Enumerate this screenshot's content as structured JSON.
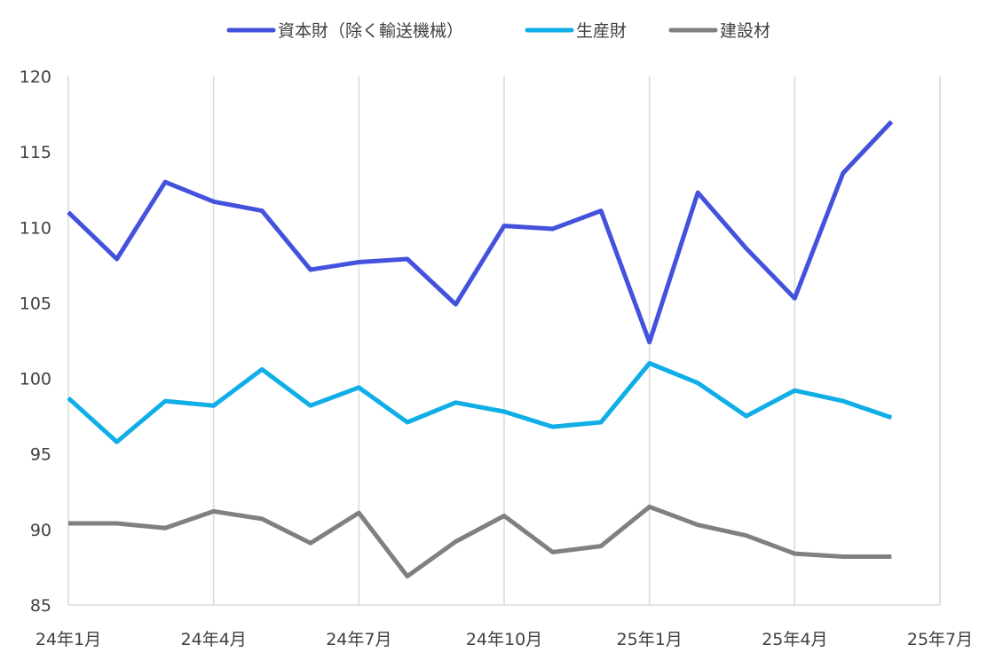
{
  "chart_data": {
    "type": "line",
    "title": "",
    "xlabel": "",
    "ylabel": "",
    "ylim": [
      85,
      120
    ],
    "yticks": [
      85,
      90,
      95,
      100,
      105,
      110,
      115,
      120
    ],
    "x_tick_labels": [
      "24年1月",
      "24年4月",
      "24年7月",
      "24年10月",
      "25年1月",
      "25年4月",
      "25年7月"
    ],
    "x_range_months": [
      0,
      18
    ],
    "grid": "vertical",
    "legend_position": "top",
    "x": [
      "24年1月",
      "24年2月",
      "24年3月",
      "24年4月",
      "24年5月",
      "24年6月",
      "24年7月",
      "24年8月",
      "24年9月",
      "24年10月",
      "24年11月",
      "24年12月",
      "25年1月",
      "25年2月",
      "25年3月",
      "25年4月",
      "25年5月",
      "25年6月"
    ],
    "series": [
      {
        "name": "資本財（除く輸送機械）",
        "color": "#4352DC",
        "values": [
          111.0,
          107.9,
          113.0,
          111.7,
          111.1,
          107.2,
          107.7,
          107.9,
          104.9,
          110.1,
          109.9,
          111.1,
          102.4,
          112.3,
          108.6,
          105.3,
          113.6,
          117.0
        ]
      },
      {
        "name": "生産財",
        "color": "#10AEE6",
        "values": [
          98.7,
          95.8,
          98.5,
          98.2,
          100.6,
          98.2,
          99.4,
          97.1,
          98.4,
          97.8,
          96.8,
          97.1,
          101.0,
          99.7,
          97.5,
          99.2,
          98.5,
          97.4
        ]
      },
      {
        "name": "建設材",
        "color": "#808080",
        "values": [
          90.4,
          90.4,
          90.1,
          91.2,
          90.7,
          89.1,
          91.1,
          86.9,
          89.2,
          90.9,
          88.5,
          88.9,
          91.5,
          90.3,
          89.6,
          88.4,
          88.2,
          88.2
        ]
      }
    ]
  }
}
